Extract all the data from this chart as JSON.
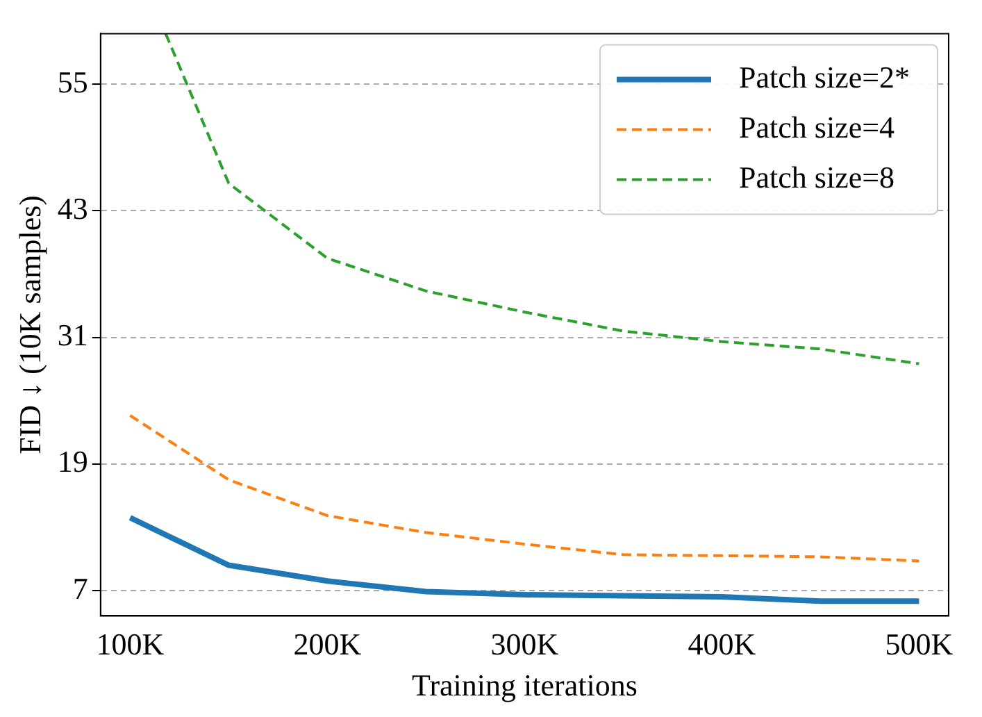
{
  "chart_data": {
    "type": "line",
    "xlabel": "Training iterations",
    "ylabel": "FID ↓ (10K samples)",
    "x": [
      100,
      150,
      200,
      250,
      300,
      350,
      400,
      450,
      500
    ],
    "series": [
      {
        "name": "Patch size=2*",
        "color": "#1f77b4",
        "line_style": "solid",
        "values": [
          13.9,
          9.4,
          7.9,
          6.9,
          6.6,
          6.5,
          6.4,
          6.0,
          6.0
        ]
      },
      {
        "name": "Patch size=4",
        "color": "#ff7f0e",
        "line_style": "dashed",
        "values": [
          23.6,
          17.5,
          14.1,
          12.5,
          11.4,
          10.4,
          10.3,
          10.2,
          9.8
        ]
      },
      {
        "name": "Patch size=8",
        "color": "#2ca02c",
        "line_style": "dashed",
        "x": [
          118,
          150,
          200,
          250,
          300,
          350,
          400,
          450,
          500
        ],
        "values": [
          59.8,
          45.6,
          38.5,
          35.4,
          33.4,
          31.6,
          30.6,
          29.9,
          28.5
        ]
      }
    ],
    "xlim": [
      85,
      515
    ],
    "ylim": [
      4.6,
      59.8
    ],
    "xticks": [
      {
        "value": 100,
        "label": "100K"
      },
      {
        "value": 200,
        "label": "200K"
      },
      {
        "value": 300,
        "label": "300K"
      },
      {
        "value": 400,
        "label": "400K"
      },
      {
        "value": 500,
        "label": "500K"
      }
    ],
    "yticks": [
      7,
      19,
      31,
      43,
      55
    ],
    "grid": "y",
    "legend": "top right",
    "marker": "none"
  }
}
